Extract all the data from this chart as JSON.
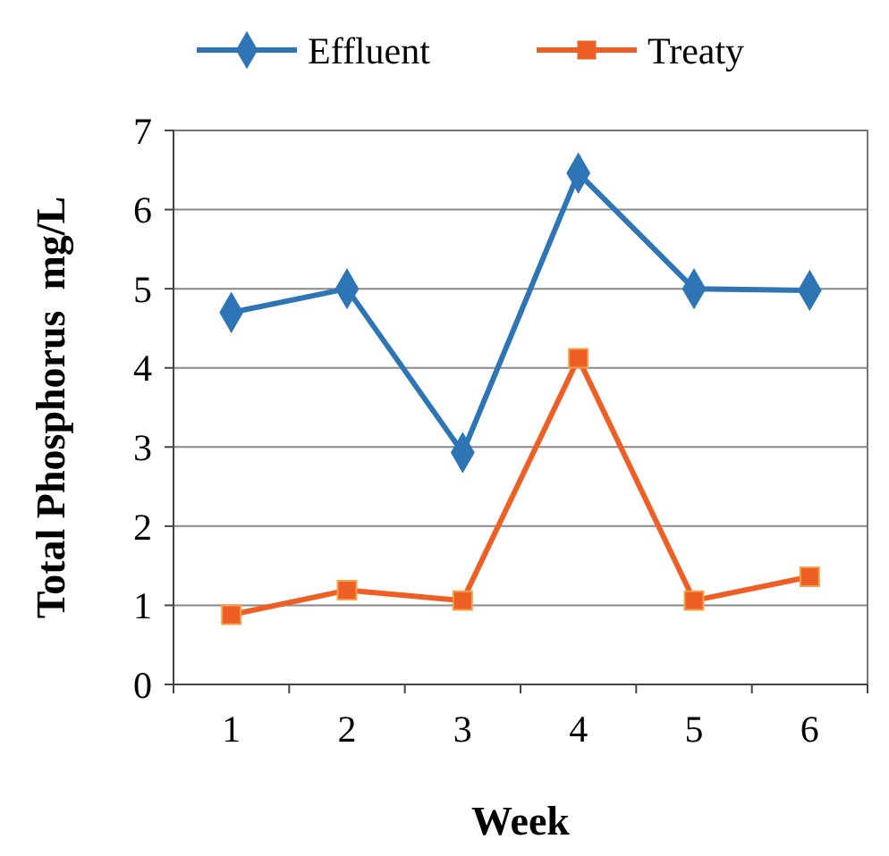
{
  "chart_data": {
    "type": "line",
    "xlabel": "Week",
    "ylabel": "Total Phosphorus  mg/L",
    "categories": [
      "1",
      "2",
      "3",
      "4",
      "5",
      "6"
    ],
    "series": [
      {
        "name": "Effluent",
        "color": "#2e75b6",
        "marker": "diamond",
        "values": [
          4.7,
          5.0,
          2.93,
          6.46,
          5.0,
          4.98
        ]
      },
      {
        "name": "Treaty",
        "color": "#ed5f24",
        "marker": "square",
        "values": [
          0.88,
          1.19,
          1.06,
          4.12,
          1.06,
          1.36
        ]
      }
    ],
    "ylim": [
      0,
      7
    ],
    "yticks": [
      0,
      1,
      2,
      3,
      4,
      5,
      6,
      7
    ],
    "grid": "y",
    "legend": "top"
  }
}
